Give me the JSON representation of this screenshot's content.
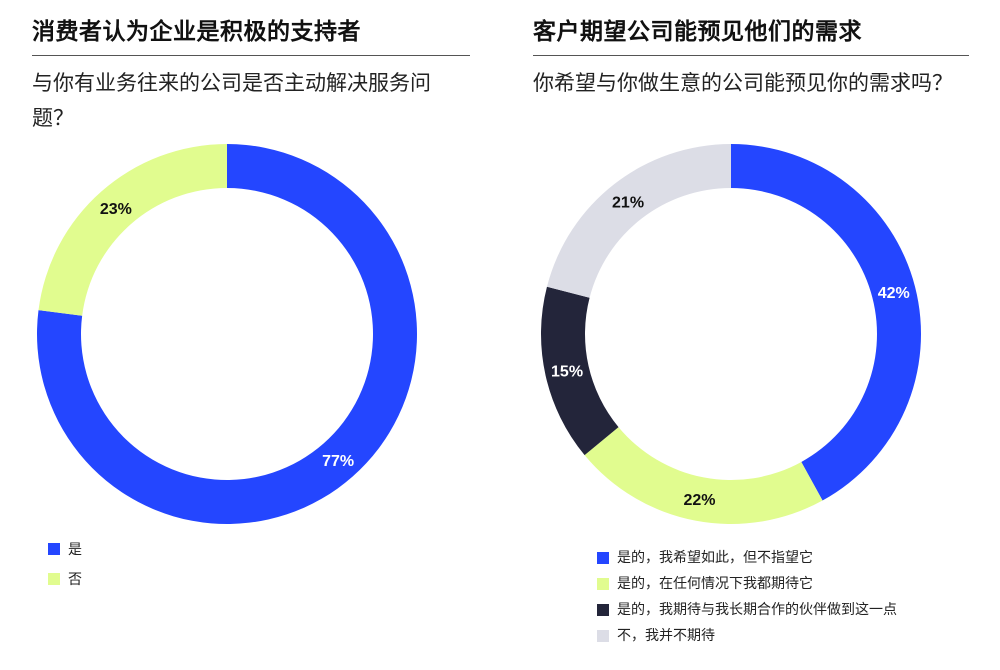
{
  "chart_data": [
    {
      "type": "pie",
      "title": "消费者认为企业是积极的支持者",
      "subtitle": "与你有业务往来的公司是否主动解决服务问题？",
      "categories": [
        "是",
        "否"
      ],
      "values": [
        77,
        23
      ],
      "labels": [
        "77%",
        "23%"
      ],
      "colors": [
        "#2446ff",
        "#e1fc8f"
      ],
      "label_colors": [
        "#ffffff",
        "#111111"
      ],
      "legend": "bottom-left"
    },
    {
      "type": "pie",
      "title": "客户期望公司能预见他们的需求",
      "subtitle": "你希望与你做生意的公司能预见你的需求吗？",
      "categories": [
        "是的，我希望如此，但不指望它",
        "是的，在任何情况下我都期待它",
        "是的，我期待与我长期合作的伙伴做到这一点",
        "不，我并不期待"
      ],
      "values": [
        42,
        22,
        15,
        21
      ],
      "labels": [
        "42%",
        "22%",
        "15%",
        "21%"
      ],
      "colors": [
        "#2446ff",
        "#e1fc8f",
        "#23253a",
        "#dcdde6"
      ],
      "label_colors": [
        "#ffffff",
        "#111111",
        "#ffffff",
        "#111111"
      ],
      "legend": "bottom"
    }
  ]
}
